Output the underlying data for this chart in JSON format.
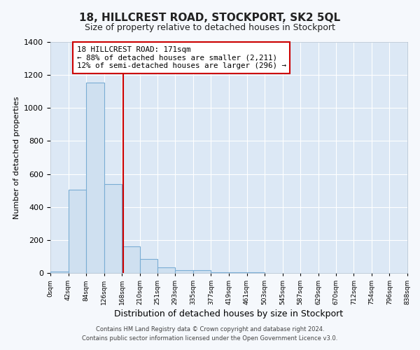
{
  "title": "18, HILLCREST ROAD, STOCKPORT, SK2 5QL",
  "subtitle": "Size of property relative to detached houses in Stockport",
  "xlabel": "Distribution of detached houses by size in Stockport",
  "ylabel": "Number of detached properties",
  "bar_color": "#cfe0f0",
  "bar_edge_color": "#7aadd4",
  "background_color": "#dce8f5",
  "grid_color": "#ffffff",
  "fig_background": "#f5f8fc",
  "bin_edges": [
    0,
    42,
    84,
    126,
    168,
    210,
    251,
    293,
    335,
    377,
    419,
    461,
    503,
    545,
    587,
    629,
    670,
    712,
    754,
    796,
    838
  ],
  "bar_heights": [
    10,
    505,
    1155,
    540,
    160,
    85,
    35,
    18,
    15,
    5,
    5,
    5,
    0,
    0,
    0,
    0,
    0,
    0,
    0,
    0
  ],
  "red_line_x": 171,
  "red_line_color": "#cc0000",
  "annotation_title": "18 HILLCREST ROAD: 171sqm",
  "annotation_line1": "← 88% of detached houses are smaller (2,211)",
  "annotation_line2": "12% of semi-detached houses are larger (296) →",
  "annotation_box_color": "#ffffff",
  "annotation_box_edge": "#cc0000",
  "ylim": [
    0,
    1400
  ],
  "xlim": [
    0,
    838
  ],
  "tick_labels": [
    "0sqm",
    "42sqm",
    "84sqm",
    "126sqm",
    "168sqm",
    "210sqm",
    "251sqm",
    "293sqm",
    "335sqm",
    "377sqm",
    "419sqm",
    "461sqm",
    "503sqm",
    "545sqm",
    "587sqm",
    "629sqm",
    "670sqm",
    "712sqm",
    "754sqm",
    "796sqm",
    "838sqm"
  ],
  "footer_line1": "Contains HM Land Registry data © Crown copyright and database right 2024.",
  "footer_line2": "Contains public sector information licensed under the Open Government Licence v3.0."
}
